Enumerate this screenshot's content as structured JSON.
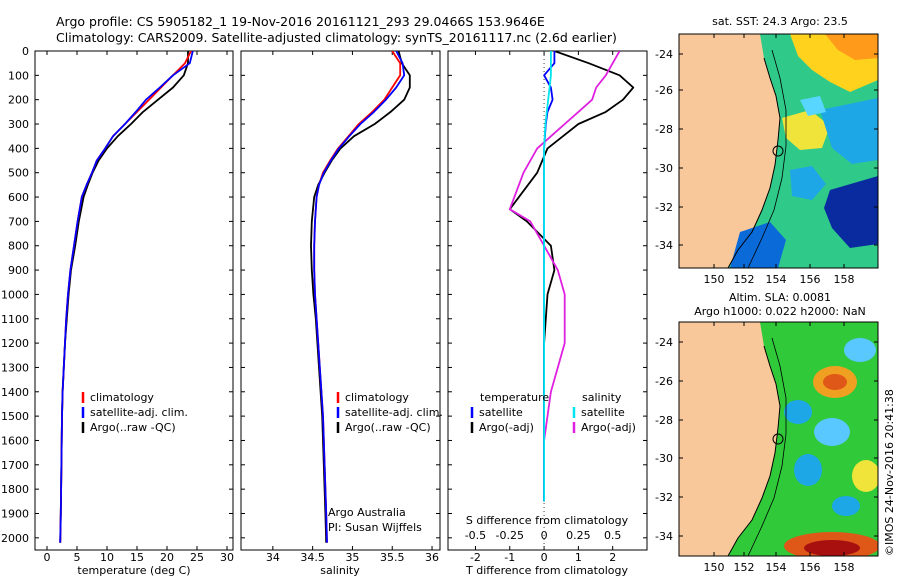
{
  "header": {
    "line1": "Argo profile: CS 5905182_1 19-Nov-2016 20161121_293 29.0466S 153.9646E",
    "line2": "Climatology: CARS2009. Satellite-adjusted climatology: synTS_20161117.nc (2.6d earlier)"
  },
  "depth_axis": {
    "ticks": [
      0,
      100,
      200,
      300,
      400,
      500,
      600,
      700,
      800,
      900,
      1000,
      1100,
      1200,
      1300,
      1400,
      1500,
      1600,
      1700,
      1800,
      1900,
      2000
    ]
  },
  "legend": {
    "climatology": "climatology",
    "satellite": "satellite-adj. clim.",
    "argo": "Argo(..raw -QC)"
  },
  "legend3": {
    "temp_head": "temperature",
    "sal_head": "salinity",
    "satellite": "satellite",
    "argo": "Argo(-adj)"
  },
  "annotation": {
    "org": "Argo Australia",
    "pi": "PI: Susan Wijffels"
  },
  "map1": {
    "title": "sat. SST: 24.3  Argo: 23.5"
  },
  "map2": {
    "title1": "Altim. SLA: 0.0081",
    "title2": "Argo h1000: 0.022 h2000: NaN"
  },
  "map_axes": {
    "lat_ticks": [
      "-24",
      "-26",
      "-28",
      "-30",
      "-32",
      "-34"
    ],
    "lon_ticks": [
      "150",
      "152",
      "154",
      "156",
      "158"
    ]
  },
  "credit": "©IMOS 24-Nov-2016 20:41:38",
  "colors": {
    "climatology": "#ff0000",
    "satellite": "#0000ff",
    "argo": "#000000",
    "sal_satellite": "#00e5ee",
    "sal_argo": "#e020e0",
    "land": "#f8c89a"
  },
  "chart_data": [
    {
      "type": "line",
      "xlabel": "temperature (deg C)",
      "ylabel": "",
      "xlim": [
        -2,
        31
      ],
      "ylim": [
        0,
        2050
      ],
      "xticks": [
        0,
        5,
        10,
        15,
        20,
        25,
        30
      ],
      "series": [
        {
          "name": "climatology",
          "x": [
            24,
            23,
            21,
            19,
            17,
            15,
            13,
            11,
            9.7,
            8.3,
            7.5,
            6.6,
            5.8,
            5.1,
            4.5,
            3.9,
            3.5,
            3.2,
            3,
            2.8,
            2.6,
            2.5,
            2.4,
            2.3,
            2.2
          ],
          "y": [
            0,
            50,
            100,
            150,
            200,
            250,
            300,
            350,
            400,
            450,
            500,
            550,
            600,
            700,
            800,
            900,
            1000,
            1100,
            1200,
            1300,
            1400,
            1500,
            1700,
            1900,
            2020
          ]
        },
        {
          "name": "satellite-adj. clim.",
          "x": [
            24.3,
            23.8,
            21,
            18.8,
            16.5,
            14.8,
            13,
            11,
            9.7,
            8.3,
            7.5,
            6.6,
            5.8,
            5.1,
            4.5,
            3.9,
            3.5,
            3.2,
            3,
            2.8,
            2.6,
            2.5,
            2.4,
            2.3,
            2.2
          ],
          "y": [
            0,
            50,
            100,
            150,
            200,
            250,
            300,
            350,
            400,
            450,
            500,
            550,
            600,
            700,
            800,
            900,
            1000,
            1100,
            1200,
            1300,
            1400,
            1500,
            1700,
            1900,
            2020
          ]
        },
        {
          "name": "Argo(..raw -QC)",
          "x": [
            23.5,
            23.5,
            22.8,
            21,
            18.5,
            16,
            14,
            11.8,
            10,
            8.6,
            7.6,
            6.8,
            6.1,
            5.3,
            4.7,
            4,
            3.6,
            3.3,
            3,
            2.8,
            2.6,
            2.5,
            2.4,
            2.3,
            2.2
          ],
          "y": [
            0,
            50,
            100,
            150,
            200,
            250,
            300,
            350,
            400,
            450,
            500,
            550,
            600,
            700,
            800,
            900,
            1000,
            1100,
            1200,
            1300,
            1400,
            1500,
            1700,
            1900,
            2020
          ]
        }
      ]
    },
    {
      "type": "line",
      "xlabel": "salinity",
      "xlim": [
        33.6,
        36.1
      ],
      "ylim": [
        0,
        2050
      ],
      "xticks": [
        34,
        34.5,
        35,
        35.5,
        36
      ],
      "series": [
        {
          "name": "climatology",
          "x": [
            35.5,
            35.6,
            35.6,
            35.5,
            35.4,
            35.25,
            35.08,
            34.95,
            34.82,
            34.72,
            34.63,
            34.58,
            34.55,
            34.53,
            34.52,
            34.52,
            34.53,
            34.55,
            34.57,
            34.59,
            34.61,
            34.63,
            34.65,
            34.67,
            34.68
          ],
          "y": [
            0,
            50,
            100,
            150,
            200,
            250,
            300,
            350,
            400,
            450,
            500,
            550,
            600,
            700,
            800,
            900,
            1000,
            1100,
            1200,
            1300,
            1400,
            1500,
            1700,
            1900,
            2020
          ]
        },
        {
          "name": "satellite-adj. clim.",
          "x": [
            35.55,
            35.63,
            35.65,
            35.55,
            35.42,
            35.27,
            35.1,
            34.96,
            34.83,
            34.73,
            34.64,
            34.58,
            34.55,
            34.53,
            34.52,
            34.52,
            34.53,
            34.55,
            34.57,
            34.59,
            34.61,
            34.63,
            34.65,
            34.67,
            34.68
          ],
          "y": [
            0,
            50,
            100,
            150,
            200,
            250,
            300,
            350,
            400,
            450,
            500,
            550,
            600,
            700,
            800,
            900,
            1000,
            1100,
            1200,
            1300,
            1400,
            1500,
            1700,
            1900,
            2020
          ]
        },
        {
          "name": "Argo(..raw -QC)",
          "x": [
            35.58,
            35.62,
            35.72,
            35.72,
            35.65,
            35.48,
            35.28,
            35.02,
            34.85,
            34.74,
            34.65,
            34.57,
            34.52,
            34.49,
            34.48,
            34.49,
            34.51,
            34.54,
            34.56,
            34.58,
            34.6,
            34.62,
            34.64,
            34.66,
            34.67
          ],
          "y": [
            0,
            50,
            100,
            150,
            200,
            250,
            300,
            350,
            400,
            450,
            500,
            550,
            600,
            700,
            800,
            900,
            1000,
            1100,
            1200,
            1300,
            1400,
            1500,
            1700,
            1900,
            2020
          ]
        }
      ]
    },
    {
      "type": "line",
      "xlabel": "T difference from climatology",
      "x2label": "S difference from climatology",
      "xlim": [
        -2.8,
        3
      ],
      "ylim": [
        0,
        2050
      ],
      "xticks": [
        -2,
        -1,
        0,
        1,
        2
      ],
      "x2ticks": [
        "-0.5",
        "-0.25",
        "0",
        "0.25",
        "0.5"
      ],
      "series": [
        {
          "name": "temperature satellite",
          "x": [
            0.3,
            0.3,
            0,
            0.2,
            0.25,
            0.1,
            0.05,
            0,
            0,
            0,
            0,
            0,
            0,
            0,
            0,
            0,
            0,
            0,
            0
          ],
          "y": [
            0,
            50,
            100,
            150,
            200,
            250,
            300,
            400,
            500,
            600,
            700,
            800,
            900,
            1000,
            1200,
            1400,
            1600,
            1800,
            1850
          ]
        },
        {
          "name": "temperature Argo(-adj)",
          "x": [
            0.3,
            1.3,
            2.2,
            2.6,
            2.3,
            1.8,
            1,
            0.1,
            -0.2,
            -1,
            -0.5,
            0.2,
            0.3,
            0.1,
            0,
            0,
            0,
            0,
            0
          ],
          "y": [
            0,
            50,
            100,
            150,
            200,
            250,
            300,
            400,
            500,
            650,
            700,
            800,
            900,
            1000,
            1200,
            1400,
            1600,
            1800,
            1850
          ]
        },
        {
          "name": "salinity satellite",
          "x": [
            0.05,
            0.05,
            0.05,
            0.04,
            0.03,
            0.02,
            0.01,
            0,
            0,
            0,
            0,
            0,
            0,
            0,
            0,
            0,
            0,
            0,
            0
          ],
          "y": [
            0,
            50,
            100,
            150,
            200,
            250,
            300,
            400,
            500,
            600,
            700,
            800,
            900,
            1000,
            1200,
            1400,
            1600,
            1800,
            1850
          ]
        },
        {
          "name": "salinity Argo(-adj)",
          "x": [
            0.55,
            0.5,
            0.45,
            0.38,
            0.35,
            0.25,
            0.15,
            -0.05,
            -0.15,
            -0.25,
            -0.1,
            0,
            0.1,
            0.15,
            0.15,
            0.05,
            0,
            0,
            0
          ],
          "y": [
            0,
            50,
            100,
            150,
            200,
            250,
            300,
            400,
            500,
            650,
            700,
            800,
            900,
            1000,
            1200,
            1400,
            1600,
            1800,
            1850
          ]
        }
      ]
    }
  ]
}
